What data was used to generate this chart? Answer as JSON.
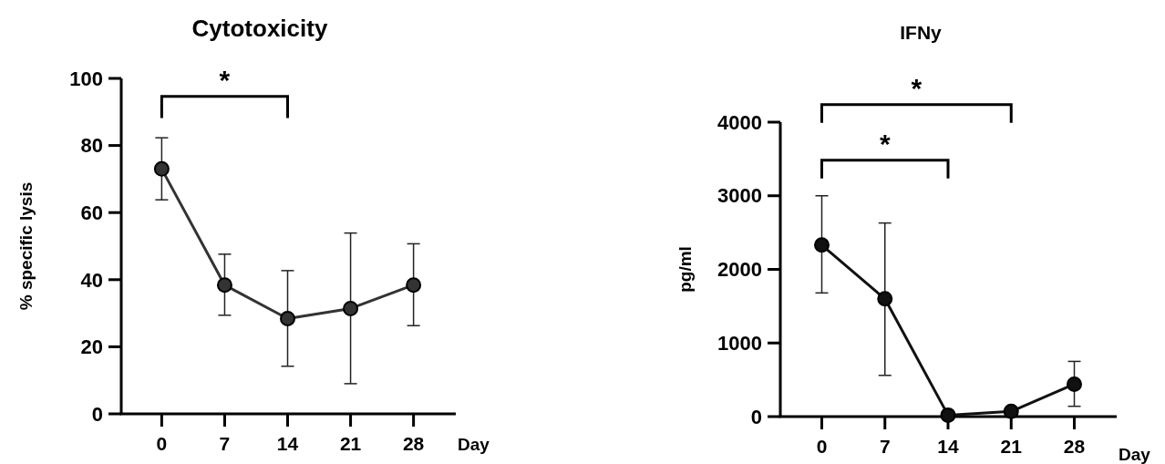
{
  "chart_data": [
    {
      "type": "line",
      "title": "Cytotoxicity",
      "ylabel": "% specific lysis",
      "xlabel": "Day",
      "x": [
        0,
        7,
        14,
        21,
        28
      ],
      "xlim": [
        -4.5,
        32.7
      ],
      "xticks": [
        0,
        7,
        14,
        21,
        28
      ],
      "ylim": [
        0,
        100
      ],
      "yticks": [
        0,
        20,
        40,
        60,
        80,
        100
      ],
      "marker": "circle",
      "grid": false,
      "annotations": [
        "*"
      ],
      "series": [
        {
          "color": "#333333",
          "values": [
            73.0,
            38.4,
            28.4,
            31.4,
            38.4
          ],
          "errors": [
            [
              63.8,
              82.3
            ],
            [
              29.4,
              47.6
            ],
            [
              14.2,
              42.7
            ],
            [
              9.0,
              53.9
            ],
            [
              26.3,
              50.7
            ]
          ]
        }
      ]
    },
    {
      "type": "line",
      "title": "IFNy",
      "ylabel": "pg/ml",
      "xlabel": "Day",
      "x": [
        0,
        7,
        14,
        21,
        28
      ],
      "xlim": [
        -4.6,
        32.7
      ],
      "xticks": [
        0,
        7,
        14,
        21,
        28
      ],
      "ylim": [
        0,
        4000
      ],
      "yticks": [
        0,
        1000,
        2000,
        3000,
        4000
      ],
      "marker": "circle",
      "grid": false,
      "annotations": [
        "*",
        "*"
      ],
      "series": [
        {
          "color": "#111111",
          "values": [
            2330,
            1600,
            20,
            70,
            440
          ],
          "errors": [
            [
              1680,
              3000
            ],
            [
              560,
              2630
            ],
            null,
            null,
            [
              140,
              750
            ]
          ]
        }
      ]
    }
  ]
}
